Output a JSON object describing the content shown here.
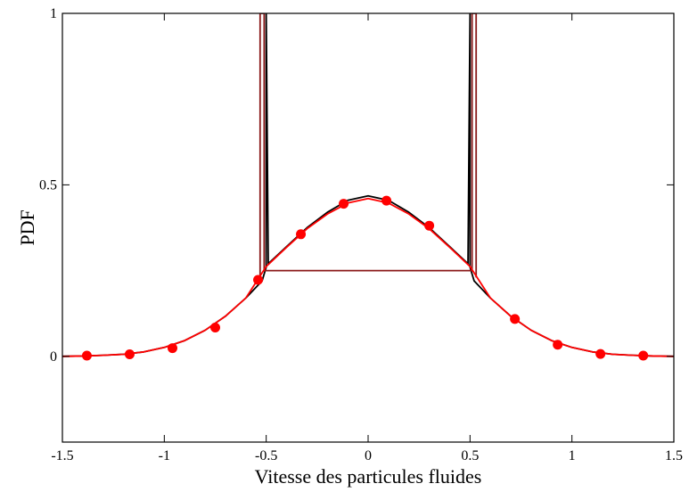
{
  "chart_data": {
    "type": "line",
    "title": "",
    "xlabel": "Vitesse des particules fluides",
    "ylabel": "PDF",
    "xlim": [
      -1.5,
      1.5
    ],
    "ylim": [
      -0.25,
      1.0
    ],
    "xticks": [
      -1.5,
      -1,
      -0.5,
      0,
      0.5,
      1,
      1.5
    ],
    "xtick_labels": [
      "-1.5",
      "-1",
      "-0.5",
      "0",
      "0.5",
      "1",
      "1.5"
    ],
    "yticks": [
      0,
      0.5,
      1
    ],
    "ytick_labels": [
      "0",
      "0.5",
      "1"
    ],
    "grid": false,
    "legend": "none",
    "series": [
      {
        "style": "line",
        "color": "#000000",
        "x": [
          -1.5,
          -1.4,
          -1.3,
          -1.2,
          -1.1,
          -1.0,
          -0.9,
          -0.8,
          -0.7,
          -0.6,
          -0.52,
          -0.5,
          -0.5,
          -0.49,
          -0.4,
          -0.3,
          -0.2,
          -0.1,
          0.0,
          0.1,
          0.2,
          0.3,
          0.4,
          0.49,
          0.5,
          0.5,
          0.52,
          0.6,
          0.7,
          0.8,
          0.9,
          1.0,
          1.1,
          1.2,
          1.3,
          1.4,
          1.5
        ],
        "y": [
          0.0,
          0.001,
          0.003,
          0.006,
          0.013,
          0.026,
          0.046,
          0.076,
          0.117,
          0.17,
          0.22,
          0.26,
          1.0,
          0.27,
          0.32,
          0.375,
          0.42,
          0.455,
          0.468,
          0.455,
          0.42,
          0.375,
          0.32,
          0.27,
          1.0,
          0.26,
          0.22,
          0.17,
          0.117,
          0.076,
          0.046,
          0.026,
          0.013,
          0.006,
          0.003,
          0.001,
          0.0
        ]
      },
      {
        "style": "line",
        "color": "#8b1a1a",
        "x": [
          -0.53,
          -0.53,
          -0.51,
          -0.51,
          0.51,
          0.51,
          0.53,
          0.53
        ],
        "y": [
          0.23,
          1.0,
          1.0,
          0.25,
          0.25,
          1.0,
          1.0,
          0.23
        ]
      },
      {
        "style": "line",
        "color": "#ff0000",
        "x": [
          -1.5,
          -1.4,
          -1.3,
          -1.2,
          -1.1,
          -1.0,
          -0.9,
          -0.8,
          -0.7,
          -0.6,
          -0.5,
          -0.4,
          -0.3,
          -0.2,
          -0.1,
          0.0,
          0.1,
          0.2,
          0.3,
          0.4,
          0.5,
          0.6,
          0.7,
          0.8,
          0.9,
          1.0,
          1.1,
          1.2,
          1.3,
          1.4,
          1.5
        ],
        "y": [
          0.0,
          0.001,
          0.003,
          0.006,
          0.013,
          0.026,
          0.046,
          0.076,
          0.117,
          0.17,
          0.262,
          0.318,
          0.372,
          0.415,
          0.447,
          0.46,
          0.447,
          0.415,
          0.372,
          0.318,
          0.262,
          0.17,
          0.117,
          0.076,
          0.046,
          0.026,
          0.013,
          0.006,
          0.003,
          0.001,
          0.0
        ]
      },
      {
        "style": "scatter",
        "color": "#ff0000",
        "x": [
          -1.38,
          -1.17,
          -0.96,
          -0.75,
          -0.54,
          -0.33,
          -0.12,
          0.09,
          0.3,
          0.72,
          0.93,
          1.14,
          1.35
        ],
        "y": [
          0.002,
          0.006,
          0.024,
          0.084,
          0.223,
          0.356,
          0.445,
          0.454,
          0.381,
          0.109,
          0.034,
          0.007,
          0.002
        ]
      }
    ]
  }
}
